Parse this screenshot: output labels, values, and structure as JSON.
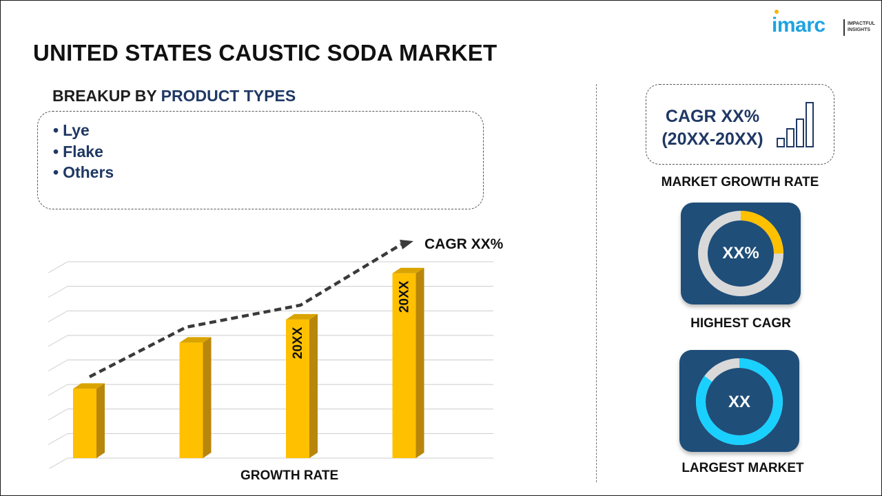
{
  "header": {
    "title": "UNITED STATES CAUSTIC SODA MARKET",
    "logo_text": "imarc",
    "logo_tagline": "IMPACTFUL INSIGHTS"
  },
  "breakup": {
    "heading_prefix": "BREAKUP BY",
    "heading_accent": "PRODUCT TYPES",
    "items": [
      "Lye",
      "Flake",
      "Others"
    ]
  },
  "chart_data": {
    "type": "bar",
    "categories": [
      "",
      "",
      "",
      ""
    ],
    "values": [
      30,
      50,
      60,
      80
    ],
    "bar_labels": [
      "",
      "",
      "20XX",
      "20XX"
    ],
    "trend_label": "CAGR XX%",
    "xlabel": "GROWTH RATE",
    "ylabel": "",
    "ylim": [
      0,
      85
    ],
    "grid": true,
    "colors": {
      "bar_front": "#ffc000",
      "bar_side": "#b8860b",
      "bar_top": "#d9a400",
      "trend": "#3a3a3a",
      "grid": "#cccccc"
    }
  },
  "sidebar": {
    "cagr_line1": "CAGR XX%",
    "cagr_line2": "(20XX-20XX)",
    "growth_caption": "MARKET GROWTH RATE",
    "highest_value": "XX%",
    "highest_caption": "HIGHEST CAGR",
    "highest_fraction": 0.25,
    "largest_value": "XX",
    "largest_caption": "LARGEST MARKET",
    "largest_fraction": 0.85,
    "colors": {
      "tile_bg": "#1f4e79",
      "highest_ring": "#ffc000",
      "largest_ring": "#1ad0ff",
      "ring_track": "#d9d9d9"
    }
  }
}
